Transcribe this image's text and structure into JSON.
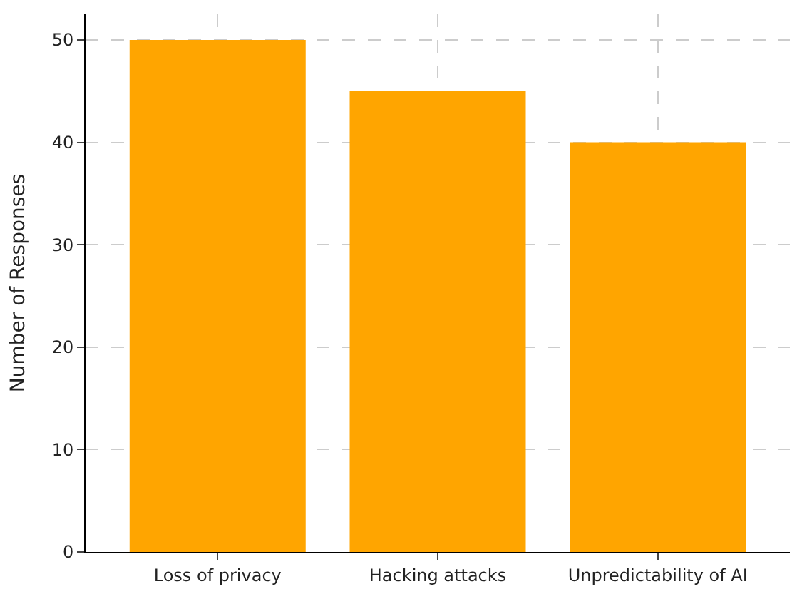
{
  "chart_data": {
    "type": "bar",
    "ylabel": "Number of Responses",
    "categories": [
      "Loss of privacy",
      "Hacking attacks",
      "Unpredictability of AI"
    ],
    "values": [
      50,
      45,
      40
    ],
    "color": "#ffa500",
    "ylim": [
      0,
      52.5
    ],
    "yticks": [
      0,
      10,
      20,
      30,
      40,
      50
    ],
    "grid": true
  }
}
